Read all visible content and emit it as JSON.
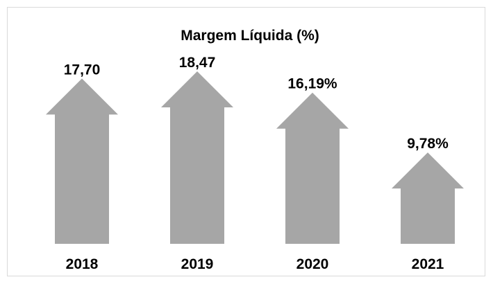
{
  "chart_data": {
    "type": "bar",
    "title": "Margem Líquida (%)",
    "categories": [
      "2018",
      "2019",
      "2020",
      "2021"
    ],
    "values": [
      17.7,
      18.47,
      16.19,
      9.78
    ],
    "value_labels": [
      "17,70",
      "18,47",
      "16,19%",
      "9,78%"
    ],
    "color": "#a6a6a6"
  }
}
